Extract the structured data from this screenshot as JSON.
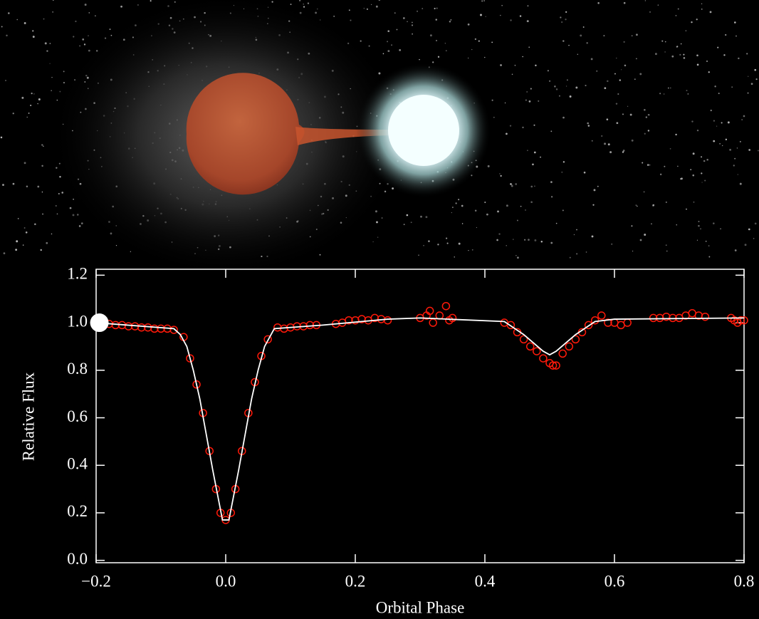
{
  "chart_data": {
    "type": "line",
    "x_label": "Orbital Phase",
    "y_label": "Relative Flux",
    "xlim": [
      -0.2,
      0.8
    ],
    "ylim": [
      -0.01,
      1.225
    ],
    "xticks": [
      {
        "value": -0.2,
        "label": "−0.2"
      },
      {
        "value": 0,
        "label": "0.0"
      },
      0.2,
      0.4,
      0.6,
      0.8
    ],
    "yticks": [
      {
        "value": 0,
        "label": "0.0"
      },
      0.2,
      0.4,
      0.6,
      0.8,
      {
        "value": 1,
        "label": "1.0"
      },
      1.2
    ],
    "series": [
      {
        "kind": "scatter",
        "color": "#ff1a0a",
        "x": [
          -0.19,
          -0.18,
          -0.17,
          -0.16,
          -0.15,
          -0.14,
          -0.13,
          -0.12,
          -0.11,
          -0.1,
          -0.09,
          -0.08,
          -0.065,
          -0.055,
          -0.045,
          -0.035,
          -0.025,
          -0.015,
          -0.008,
          0,
          0.008,
          0.015,
          0.025,
          0.035,
          0.045,
          0.055,
          0.065,
          0.08,
          0.09,
          0.1,
          0.11,
          0.12,
          0.13,
          0.14,
          0.17,
          0.18,
          0.19,
          0.2,
          0.21,
          0.22,
          0.23,
          0.24,
          0.25,
          0.3,
          0.31,
          0.315,
          0.32,
          0.33,
          0.34,
          0.345,
          0.35,
          0.43,
          0.44,
          0.45,
          0.46,
          0.47,
          0.48,
          0.49,
          0.5,
          0.505,
          0.51,
          0.52,
          0.53,
          0.54,
          0.55,
          0.56,
          0.57,
          0.58,
          0.59,
          0.6,
          0.61,
          0.62,
          0.66,
          0.67,
          0.68,
          0.69,
          0.7,
          0.71,
          0.72,
          0.73,
          0.74,
          0.78,
          0.785,
          0.79,
          0.795,
          0.8
        ],
        "values": [
          1.0,
          0.995,
          0.99,
          0.99,
          0.985,
          0.985,
          0.98,
          0.98,
          0.975,
          0.975,
          0.975,
          0.97,
          0.94,
          0.85,
          0.74,
          0.62,
          0.46,
          0.3,
          0.2,
          0.17,
          0.2,
          0.3,
          0.46,
          0.62,
          0.75,
          0.86,
          0.93,
          0.98,
          0.975,
          0.98,
          0.985,
          0.985,
          0.99,
          0.99,
          0.995,
          1.0,
          1.01,
          1.01,
          1.015,
          1.01,
          1.02,
          1.015,
          1.01,
          1.02,
          1.03,
          1.05,
          1.0,
          1.03,
          1.07,
          1.01,
          1.02,
          1.0,
          0.99,
          0.96,
          0.93,
          0.9,
          0.88,
          0.85,
          0.83,
          0.82,
          0.82,
          0.87,
          0.9,
          0.93,
          0.96,
          0.99,
          1.01,
          1.03,
          1.0,
          1.0,
          0.99,
          1.0,
          1.02,
          1.02,
          1.025,
          1.02,
          1.02,
          1.03,
          1.04,
          1.03,
          1.025,
          1.02,
          1.01,
          1.0,
          1.01,
          1.01
        ]
      },
      {
        "kind": "line",
        "color": "#ffffff",
        "x": [
          -0.2,
          -0.08,
          -0.07,
          -0.06,
          -0.05,
          -0.04,
          -0.03,
          -0.02,
          -0.01,
          -0.005,
          0.005,
          0.01,
          0.02,
          0.03,
          0.04,
          0.05,
          0.06,
          0.07,
          0.075,
          0.15,
          0.25,
          0.3,
          0.43,
          0.46,
          0.49,
          0.5,
          0.51,
          0.54,
          0.57,
          0.6,
          0.8
        ],
        "values": [
          1.0,
          0.975,
          0.95,
          0.9,
          0.8,
          0.68,
          0.53,
          0.38,
          0.24,
          0.17,
          0.17,
          0.24,
          0.38,
          0.53,
          0.68,
          0.8,
          0.9,
          0.95,
          0.975,
          0.99,
          1.015,
          1.02,
          1.005,
          0.95,
          0.88,
          0.865,
          0.88,
          0.95,
          1.005,
          1.015,
          1.02
        ]
      }
    ],
    "highlight": {
      "x": -0.195,
      "y": 1.0,
      "color": "#ffffff"
    }
  }
}
